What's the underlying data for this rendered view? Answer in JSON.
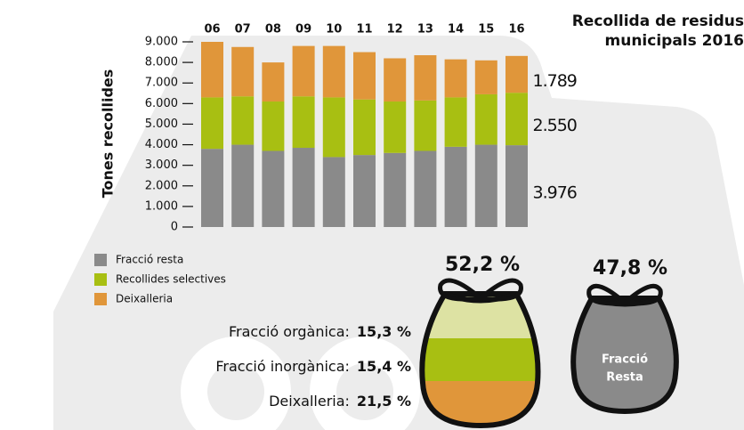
{
  "chart_data": {
    "type": "stacked-bar",
    "title": "Recollida de residus municipals 2016",
    "y_label": "Tones recollides",
    "categories": [
      "06",
      "07",
      "08",
      "09",
      "10",
      "11",
      "12",
      "13",
      "14",
      "15",
      "16"
    ],
    "series": [
      {
        "name": "Fracció resta",
        "color": "#8a8a8a",
        "values": [
          3800,
          4000,
          3700,
          3850,
          3400,
          3500,
          3600,
          3700,
          3900,
          4000,
          3976
        ],
        "value_labels": [
          null,
          null,
          null,
          null,
          null,
          null,
          null,
          null,
          null,
          null,
          "3.976"
        ]
      },
      {
        "name": "Recollides selectives",
        "color": "#a8bf12",
        "values": [
          2500,
          2350,
          2400,
          2500,
          2900,
          2700,
          2500,
          2450,
          2400,
          2450,
          2550
        ],
        "value_labels": [
          null,
          null,
          null,
          null,
          null,
          null,
          null,
          null,
          null,
          null,
          "2.550"
        ]
      },
      {
        "name": "Deixalleria",
        "color": "#e0963a",
        "values": [
          2700,
          2400,
          1900,
          2450,
          2500,
          2300,
          2100,
          2200,
          1850,
          1650,
          1789
        ],
        "value_labels": [
          null,
          null,
          null,
          null,
          null,
          null,
          null,
          null,
          null,
          null,
          "1.789"
        ]
      }
    ],
    "ylim": [
      0,
      9000
    ],
    "yticks": [
      0,
      {
        "value": 1000,
        "label": "1.000"
      },
      {
        "value": 2000,
        "label": "2.000"
      },
      {
        "value": 3000,
        "label": "3.000"
      },
      {
        "value": 4000,
        "label": "4.000"
      },
      {
        "value": 5000,
        "label": "5.000"
      },
      {
        "value": 6000,
        "label": "6.000"
      },
      {
        "value": 7000,
        "label": "7.000"
      },
      {
        "value": 8000,
        "label": "8.000"
      },
      {
        "value": 9000,
        "label": "9.000"
      }
    ]
  },
  "infographic": {
    "selective_total": "52,2 %",
    "resta_total": "47,8 %",
    "resta_label_1": "Fracció",
    "resta_label_2": "Resta",
    "rows": [
      {
        "label": "Fracció orgànica:",
        "value": "15,3 %"
      },
      {
        "label": "Fracció inorgànica:",
        "value": "15,4 %"
      },
      {
        "label": "Deixalleria:",
        "value": "21,5 %"
      }
    ]
  }
}
